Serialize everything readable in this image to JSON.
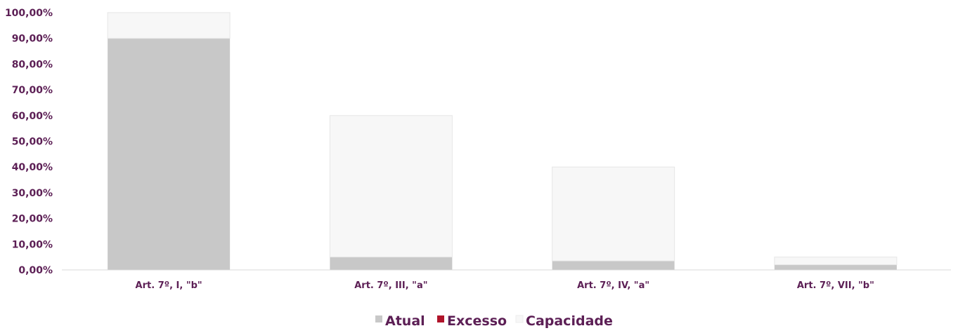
{
  "chart_data": {
    "type": "bar",
    "stacked": true,
    "categories": [
      "Art. 7º, I, \"b\"",
      "Art. 7º, III, \"a\"",
      "Art. 7º, IV, \"a\"",
      "Art. 7º, VII, \"b\""
    ],
    "series": [
      {
        "name": "Atual",
        "values": [
          90,
          5,
          3.5,
          2
        ],
        "color": "#c8c8c8"
      },
      {
        "name": "Excesso",
        "values": [
          0,
          0,
          0,
          0
        ],
        "color": "#b0142a"
      },
      {
        "name": "Capacidade",
        "values": [
          10,
          55,
          36.5,
          3
        ],
        "color": "#f7f7f7"
      }
    ],
    "ylim": [
      0,
      100
    ],
    "yticks": [
      "0,00%",
      "10,00%",
      "20,00%",
      "30,00%",
      "40,00%",
      "50,00%",
      "60,00%",
      "70,00%",
      "80,00%",
      "90,00%",
      "100,00%"
    ],
    "legend_position": "bottom-center",
    "grid": false,
    "label_color": "#5c1f55"
  }
}
